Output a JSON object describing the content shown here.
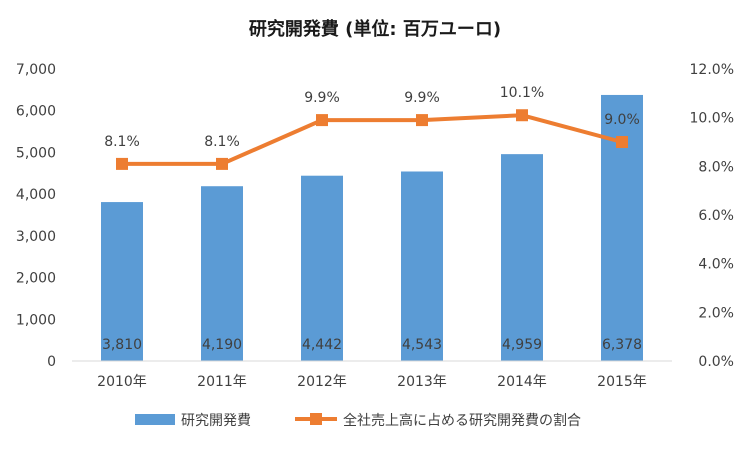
{
  "chart_data": {
    "type": "bar",
    "title": "研究開発費 (単位: 百万ユーロ)",
    "categories": [
      "2010年",
      "2011年",
      "2012年",
      "2013年",
      "2014年",
      "2015年"
    ],
    "series": [
      {
        "name": "研究開発費",
        "type": "bar",
        "axis": "left",
        "color": "#5b9bd5",
        "values": [
          3810,
          4190,
          4442,
          4543,
          4959,
          6378
        ],
        "labels": [
          "3,810",
          "4,190",
          "4,442",
          "4,543",
          "4,959",
          "6,378"
        ]
      },
      {
        "name": "全社売上高に占める研究開発費の割合",
        "type": "line",
        "axis": "right",
        "color": "#ed7d31",
        "values": [
          8.1,
          8.1,
          9.9,
          9.9,
          10.1,
          9.0
        ],
        "labels": [
          "8.1%",
          "8.1%",
          "9.9%",
          "9.9%",
          "10.1%",
          "9.0%"
        ]
      }
    ],
    "y_left": {
      "ylim": [
        0,
        7000
      ],
      "ticks": [
        0,
        1000,
        2000,
        3000,
        4000,
        5000,
        6000,
        7000
      ],
      "tick_labels": [
        "0",
        "1,000",
        "2,000",
        "3,000",
        "4,000",
        "5,000",
        "6,000",
        "7,000"
      ]
    },
    "y_right": {
      "ylim": [
        0,
        12
      ],
      "ticks": [
        0,
        2,
        4,
        6,
        8,
        10,
        12
      ],
      "tick_labels": [
        "0.0%",
        "2.0%",
        "4.0%",
        "6.0%",
        "8.0%",
        "10.0%",
        "12.0%"
      ]
    },
    "grid": false,
    "legend_position": "bottom"
  }
}
